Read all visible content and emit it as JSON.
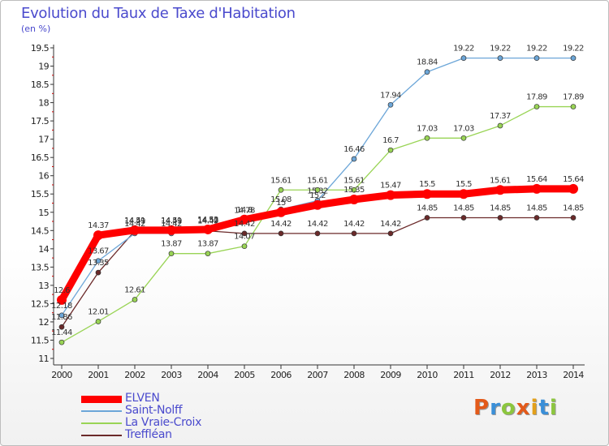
{
  "title": "Evolution du Taux de Taxe d'Habitation",
  "unit_label": "(en %)",
  "logo": {
    "text": "Proxiti",
    "letter_colors": [
      "#e35a1a",
      "#3a8fd8",
      "#8cc63e",
      "#e35a1a",
      "#e3a01a",
      "#3a8fd8",
      "#8cc63e"
    ]
  },
  "chart_data": {
    "type": "line",
    "title": "Evolution du Taux de Taxe d'Habitation",
    "ylabel": "(en %)",
    "xlabel": "",
    "x": [
      "2000",
      "2001",
      "2002",
      "2003",
      "2004",
      "2005",
      "2006",
      "2007",
      "2008",
      "2009",
      "2010",
      "2011",
      "2012",
      "2013",
      "2014"
    ],
    "ylim": [
      11,
      19.5
    ],
    "yticks": [
      "11",
      "11.5",
      "12",
      "12.5",
      "13",
      "13.5",
      "14",
      "14.5",
      "15",
      "15.5",
      "16",
      "16.5",
      "17",
      "17.5",
      "18",
      "18.5",
      "19",
      "19.5"
    ],
    "grid": false,
    "legend_position": "bottom-left",
    "series": [
      {
        "name": "ELVEN",
        "color": "#ff0000",
        "values": [
          12.6,
          14.37,
          14.51,
          14.51,
          14.53,
          14.8,
          15.0,
          15.2,
          15.35,
          15.47,
          15.5,
          15.5,
          15.61,
          15.64,
          15.64
        ],
        "labels": [
          "12.6",
          "14.37",
          "14.51",
          "14.51",
          "14.53",
          "14.8",
          "15",
          "15.2",
          "15.35",
          "15.47",
          "15.5",
          "15.5",
          "15.61",
          "15.64",
          "15.64"
        ]
      },
      {
        "name": "Saint-Nolff",
        "color": "#6ca6d8",
        "values": [
          12.18,
          13.67,
          14.42,
          14.42,
          14.52,
          14.78,
          15.08,
          15.32,
          16.46,
          17.94,
          18.84,
          19.22,
          19.22,
          19.22,
          19.22
        ],
        "labels": [
          "12.18",
          "13.67",
          "14.42",
          "14.42",
          "14.52",
          "14.78",
          "15.08",
          "15.32",
          "16.46",
          "17.94",
          "18.84",
          "19.22",
          "19.22",
          "19.22",
          "19.22"
        ]
      },
      {
        "name": "La Vraie-Croix",
        "color": "#99d455",
        "values": [
          11.44,
          12.01,
          12.61,
          13.87,
          13.87,
          14.07,
          15.61,
          15.61,
          15.61,
          16.7,
          17.03,
          17.03,
          17.37,
          17.89,
          17.89
        ],
        "labels": [
          "11.44",
          "12.01",
          "12.61",
          "13.87",
          "13.87",
          "14.07",
          "15.61",
          "15.61",
          "15.61",
          "16.7",
          "17.03",
          "17.03",
          "17.37",
          "17.89",
          "17.89"
        ]
      },
      {
        "name": "Treffléan",
        "color": "#6b2a2a",
        "values": [
          11.86,
          13.35,
          14.49,
          14.49,
          14.49,
          14.42,
          14.42,
          14.42,
          14.42,
          14.42,
          14.85,
          14.85,
          14.85,
          14.85,
          14.85
        ],
        "labels": [
          "11.86",
          "13.35",
          "14.49",
          "14.49",
          "14.49",
          "14.42",
          "14.42",
          "14.42",
          "14.42",
          "14.42",
          "14.85",
          "14.85",
          "14.85",
          "14.85",
          "14.85"
        ]
      }
    ]
  }
}
